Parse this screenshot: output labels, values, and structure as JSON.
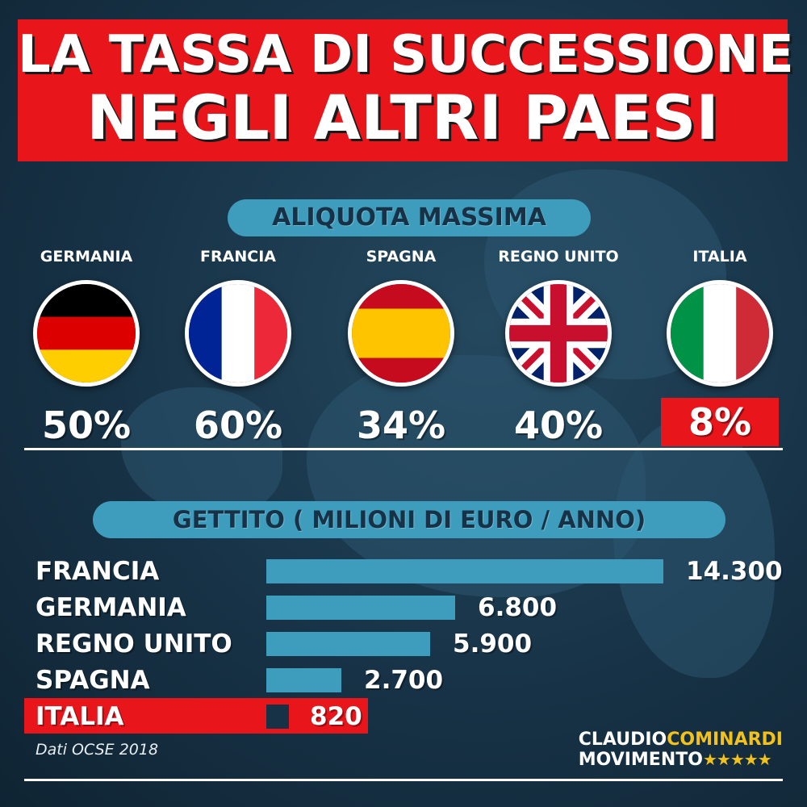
{
  "title": {
    "line1": "LA TASSA DI SUCCESSIONE",
    "line2": "NEGLI ALTRI PAESI"
  },
  "rates_section": {
    "heading": "ALIQUOTA MASSIMA",
    "countries": [
      {
        "name": "GERMANIA",
        "rate": "50%",
        "flag": "germany-flag-icon"
      },
      {
        "name": "FRANCIA",
        "rate": "60%",
        "flag": "france-flag-icon"
      },
      {
        "name": "SPAGNA",
        "rate": "34%",
        "flag": "spain-flag-icon"
      },
      {
        "name": "REGNO UNITO",
        "rate": "40%",
        "flag": "uk-flag-icon"
      },
      {
        "name": "ITALIA",
        "rate": "8%",
        "flag": "italy-flag-icon",
        "highlight": true
      }
    ]
  },
  "revenue_section": {
    "heading": "GETTITO ( MILIONI DI EURO / ANNO)",
    "rows": [
      {
        "country": "FRANCIA",
        "label": "14.300",
        "value": 14300
      },
      {
        "country": "GERMANIA",
        "label": "6.800",
        "value": 6800
      },
      {
        "country": "REGNO UNITO",
        "label": "5.900",
        "value": 5900
      },
      {
        "country": "SPAGNA",
        "label": "2.700",
        "value": 2700
      },
      {
        "country": "ITALIA",
        "label": "820",
        "value": 820,
        "highlight": true
      }
    ]
  },
  "source": "Dati OCSE 2018",
  "brand": {
    "name_first": "CLAUDIO",
    "name_last": "COMINARDI",
    "movement": "MOVIMENTO",
    "stars": "★★★★★"
  },
  "colors": {
    "accent_red": "#e8151b",
    "bar_blue": "#3e9cbd",
    "background": "#173246",
    "brand_yellow": "#f2c21b"
  }
}
